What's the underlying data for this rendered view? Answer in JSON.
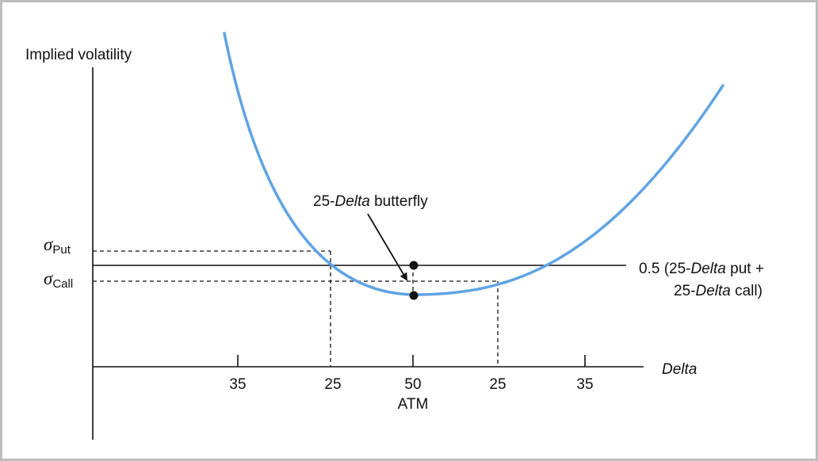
{
  "axes": {
    "y_title": "Implied volatility",
    "x_title": "Delta",
    "x_ticks": [
      "35",
      "25",
      "50",
      "25",
      "35"
    ],
    "atm_label": "ATM"
  },
  "sigma_put": {
    "symbol": "σ",
    "sub": "Put"
  },
  "sigma_call": {
    "symbol": "σ",
    "sub": "Call"
  },
  "butterfly": {
    "prefix": "25-",
    "italic": "Delta",
    "suffix": " butterfly"
  },
  "average": {
    "line1_a": "0.5 (25-",
    "line1_b": "Delta",
    "line1_c": " put +",
    "line2_a": "25-",
    "line2_b": "Delta",
    "line2_c": " call)"
  },
  "colors": {
    "curve": "#5fa3e3",
    "ink": "#111111",
    "frame": "#bdbdbd"
  }
}
